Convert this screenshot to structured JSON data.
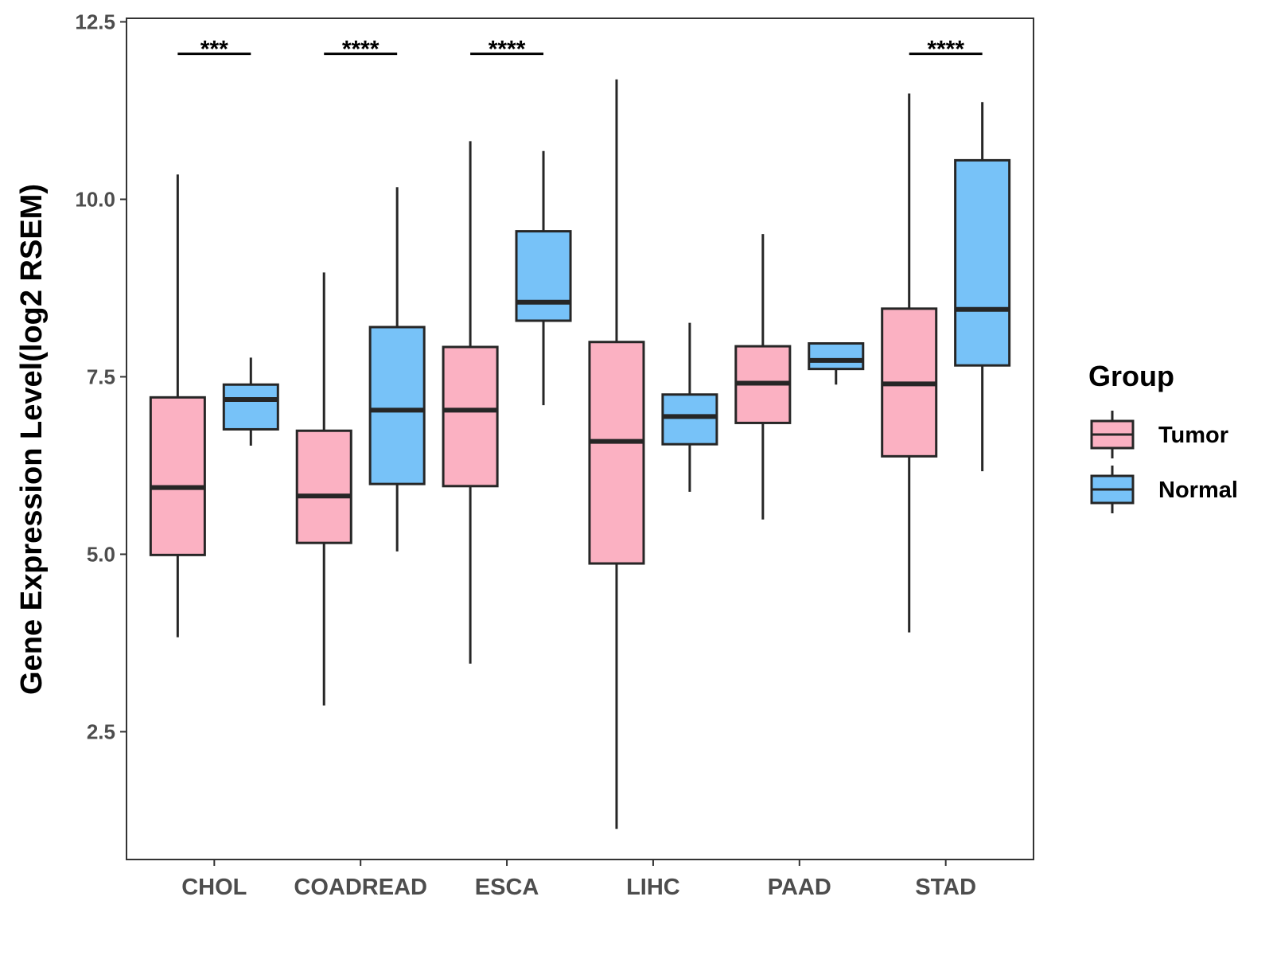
{
  "chart_data": {
    "type": "boxplot",
    "title": "",
    "xlabel": "",
    "ylabel": "Gene Expression Level(log2 RSEM)",
    "ylim": [
      0.7,
      12.55
    ],
    "yticks": [
      2.5,
      5.0,
      7.5,
      10.0,
      12.5
    ],
    "ytick_labels": [
      "2.5",
      "5.0",
      "7.5",
      "10.0",
      "12.5"
    ],
    "categories": [
      "CHOL",
      "COADREAD",
      "ESCA",
      "LIHC",
      "PAAD",
      "STAD"
    ],
    "legend": {
      "title": "Group",
      "position": "right",
      "entries": [
        {
          "name": "Tumor",
          "color": "#FBB1C2"
        },
        {
          "name": "Normal",
          "color": "#77C2F8"
        }
      ]
    },
    "series": [
      {
        "name": "Tumor",
        "color": "#FBB1C2",
        "boxes": [
          {
            "min": 3.83,
            "q1": 4.99,
            "median": 5.94,
            "q3": 7.21,
            "max": 10.35
          },
          {
            "min": 2.87,
            "q1": 5.16,
            "median": 5.82,
            "q3": 6.74,
            "max": 8.97
          },
          {
            "min": 3.46,
            "q1": 5.96,
            "median": 7.03,
            "q3": 7.92,
            "max": 10.82
          },
          {
            "min": 1.13,
            "q1": 4.87,
            "median": 6.59,
            "q3": 7.99,
            "max": 11.69
          },
          {
            "min": 5.49,
            "q1": 6.85,
            "median": 7.41,
            "q3": 7.93,
            "max": 9.51
          },
          {
            "min": 3.9,
            "q1": 6.38,
            "median": 7.4,
            "q3": 8.46,
            "max": 11.49
          }
        ]
      },
      {
        "name": "Normal",
        "color": "#77C2F8",
        "boxes": [
          {
            "min": 6.53,
            "q1": 6.76,
            "median": 7.18,
            "q3": 7.39,
            "max": 7.77
          },
          {
            "min": 5.04,
            "q1": 5.99,
            "median": 7.03,
            "q3": 8.2,
            "max": 10.17
          },
          {
            "min": 7.1,
            "q1": 8.29,
            "median": 8.55,
            "q3": 9.55,
            "max": 10.68
          },
          {
            "min": 5.88,
            "q1": 6.55,
            "median": 6.94,
            "q3": 7.25,
            "max": 8.26
          },
          {
            "min": 7.39,
            "q1": 7.61,
            "median": 7.73,
            "q3": 7.97,
            "max": 7.97
          },
          {
            "min": 6.17,
            "q1": 7.66,
            "median": 8.45,
            "q3": 10.55,
            "max": 11.37
          }
        ]
      }
    ],
    "significance": [
      {
        "category": "CHOL",
        "label": "***",
        "y": 12.05
      },
      {
        "category": "COADREAD",
        "label": "****",
        "y": 12.05
      },
      {
        "category": "ESCA",
        "label": "****",
        "y": 12.05
      },
      {
        "category": "STAD",
        "label": "****",
        "y": 12.05
      }
    ]
  }
}
